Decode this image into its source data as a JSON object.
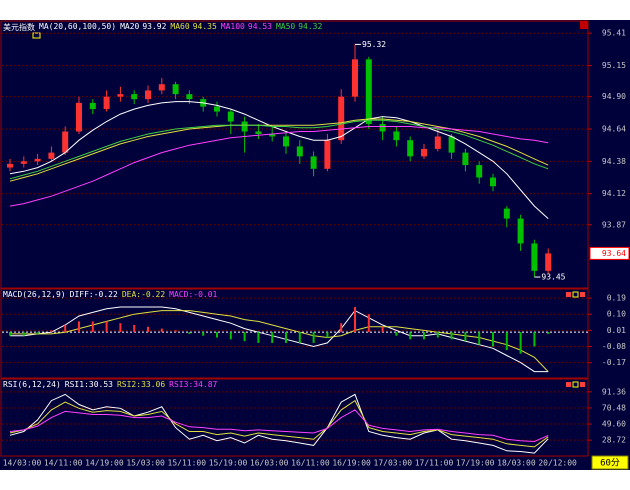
{
  "header": {
    "name": "美元指数"
  },
  "timeframe": "60分",
  "time_axis": [
    "14/03:00",
    "14/11:00",
    "14/19:00",
    "15/03:00",
    "15/11:00",
    "15/19:00",
    "16/03:00",
    "16/11:00",
    "16/19:00",
    "17/03:00",
    "17/11:00",
    "17/19:00",
    "18/03:00",
    "20/12:00"
  ],
  "chart_data": [
    {
      "type": "candlestick",
      "title": "MA(20,60,100,50)",
      "up_color": "#ff3232",
      "down_color": "#00c000",
      "ylim": [
        93.37,
        95.5
      ],
      "yticks": [
        95.41,
        95.15,
        {
          "value": 94.9,
          "label": "94.90"
        },
        94.64,
        94.38,
        94.12,
        93.87
      ],
      "grid": true,
      "last_price": 93.64,
      "ohlc": [
        [
          94.33,
          94.4,
          94.3,
          94.36
        ],
        [
          94.36,
          94.42,
          94.33,
          94.38
        ],
        [
          94.38,
          94.44,
          94.35,
          94.4
        ],
        [
          94.4,
          94.5,
          94.38,
          94.45
        ],
        [
          94.45,
          94.66,
          94.43,
          94.62
        ],
        [
          94.62,
          94.9,
          94.6,
          94.85
        ],
        [
          94.85,
          94.88,
          94.76,
          94.8
        ],
        [
          94.8,
          94.95,
          94.78,
          94.9
        ],
        [
          94.9,
          94.98,
          94.86,
          94.92
        ],
        [
          94.92,
          94.95,
          94.84,
          94.88
        ],
        [
          94.88,
          94.99,
          94.85,
          94.95
        ],
        [
          94.95,
          95.05,
          94.92,
          95.0
        ],
        [
          95.0,
          95.02,
          94.88,
          94.92
        ],
        [
          94.92,
          94.95,
          94.84,
          94.88
        ],
        [
          94.88,
          94.9,
          94.78,
          94.82
        ],
        [
          94.82,
          94.86,
          94.74,
          94.78
        ],
        [
          94.78,
          94.8,
          94.6,
          94.7
        ],
        [
          94.7,
          94.74,
          94.45,
          94.62
        ],
        [
          94.62,
          94.68,
          94.56,
          94.6
        ],
        [
          94.6,
          94.66,
          94.54,
          94.58
        ],
        [
          94.58,
          94.62,
          94.44,
          94.5
        ],
        [
          94.5,
          94.55,
          94.36,
          94.42
        ],
        [
          94.42,
          94.46,
          94.26,
          94.32
        ],
        [
          94.32,
          94.6,
          94.3,
          94.55
        ],
        [
          94.55,
          94.96,
          94.52,
          94.9
        ],
        [
          94.9,
          95.32,
          94.86,
          95.2
        ],
        [
          95.2,
          95.22,
          94.64,
          94.68
        ],
        [
          94.68,
          94.74,
          94.55,
          94.62
        ],
        [
          94.62,
          94.66,
          94.5,
          94.55
        ],
        [
          94.55,
          94.58,
          94.38,
          94.42
        ],
        [
          94.42,
          94.52,
          94.4,
          94.48
        ],
        [
          94.48,
          94.64,
          94.46,
          94.58
        ],
        [
          94.58,
          94.6,
          94.4,
          94.45
        ],
        [
          94.45,
          94.48,
          94.3,
          94.35
        ],
        [
          94.35,
          94.38,
          94.2,
          94.25
        ],
        [
          94.25,
          94.28,
          94.14,
          94.18
        ],
        [
          94.0,
          94.02,
          93.85,
          93.92
        ],
        [
          93.92,
          93.95,
          93.66,
          93.72
        ],
        [
          93.72,
          93.75,
          93.45,
          93.5
        ],
        [
          93.5,
          93.68,
          93.48,
          93.64
        ]
      ],
      "series": [
        {
          "name": "MA20",
          "color": "#ffffff",
          "values": [
            94.28,
            94.3,
            94.33,
            94.38,
            94.45,
            94.55,
            94.63,
            94.7,
            94.76,
            94.8,
            94.83,
            94.85,
            94.86,
            94.86,
            94.85,
            94.83,
            94.8,
            94.76,
            94.71,
            94.66,
            94.62,
            94.58,
            94.55,
            94.55,
            94.58,
            94.65,
            94.72,
            94.74,
            94.73,
            94.7,
            94.66,
            94.62,
            94.58,
            94.52,
            94.45,
            94.38,
            94.28,
            94.15,
            94.02,
            93.92
          ]
        },
        {
          "name": "MA60",
          "color": "#e0e040",
          "values": [
            94.22,
            94.25,
            94.28,
            94.32,
            94.36,
            94.4,
            94.44,
            94.48,
            94.52,
            94.55,
            94.58,
            94.6,
            94.62,
            94.64,
            94.65,
            94.66,
            94.67,
            94.67,
            94.67,
            94.67,
            94.67,
            94.67,
            94.67,
            94.68,
            94.69,
            94.71,
            94.72,
            94.72,
            94.71,
            94.7,
            94.68,
            94.66,
            94.64,
            94.61,
            94.58,
            94.54,
            94.5,
            94.45,
            94.4,
            94.35
          ]
        },
        {
          "name": "MA100",
          "color": "#ff40ff",
          "values": [
            94.02,
            94.04,
            94.07,
            94.1,
            94.14,
            94.18,
            94.22,
            94.27,
            94.32,
            94.37,
            94.41,
            94.45,
            94.48,
            94.51,
            94.53,
            94.55,
            94.57,
            94.58,
            94.59,
            94.6,
            94.61,
            94.62,
            94.62,
            94.63,
            94.64,
            94.65,
            94.66,
            94.66,
            94.66,
            94.66,
            94.65,
            94.65,
            94.64,
            94.63,
            94.62,
            94.6,
            94.58,
            94.56,
            94.55,
            94.53
          ]
        },
        {
          "name": "MA50",
          "color": "#40d040",
          "values": [
            94.24,
            94.27,
            94.3,
            94.34,
            94.38,
            94.42,
            94.46,
            94.5,
            94.54,
            94.57,
            94.6,
            94.62,
            94.64,
            94.65,
            94.66,
            94.67,
            94.67,
            94.67,
            94.67,
            94.66,
            94.66,
            94.65,
            94.65,
            94.66,
            94.68,
            94.7,
            94.71,
            94.71,
            94.7,
            94.68,
            94.66,
            94.64,
            94.62,
            94.59,
            94.55,
            94.51,
            94.46,
            94.41,
            94.36,
            94.32
          ]
        }
      ]
    },
    {
      "type": "macd",
      "title": "MACD(26,12,9)",
      "ylim": [
        -0.25,
        0.235
      ],
      "yticks": [
        0.19,
        {
          "value": 0.1,
          "label": "0.10"
        },
        0.01,
        -0.08,
        -0.17
      ],
      "grid": true,
      "series": [
        {
          "name": "DIFF:",
          "color": "#ffffff",
          "values": [
            -0.02,
            -0.02,
            -0.01,
            0.0,
            0.04,
            0.09,
            0.11,
            0.13,
            0.14,
            0.14,
            0.14,
            0.14,
            0.13,
            0.11,
            0.09,
            0.07,
            0.05,
            0.02,
            0.0,
            -0.02,
            -0.04,
            -0.06,
            -0.08,
            -0.06,
            0.02,
            0.12,
            0.08,
            0.04,
            0.01,
            -0.02,
            -0.02,
            -0.01,
            -0.03,
            -0.05,
            -0.07,
            -0.09,
            -0.13,
            -0.17,
            -0.22,
            -0.22
          ]
        },
        {
          "name": "DEA:",
          "color": "#e0e040",
          "values": [
            -0.01,
            -0.01,
            -0.01,
            -0.01,
            0.0,
            0.02,
            0.04,
            0.06,
            0.08,
            0.1,
            0.11,
            0.12,
            0.12,
            0.12,
            0.11,
            0.1,
            0.09,
            0.07,
            0.06,
            0.04,
            0.02,
            0.0,
            -0.02,
            -0.03,
            -0.02,
            0.01,
            0.03,
            0.03,
            0.03,
            0.02,
            0.01,
            0.0,
            -0.01,
            -0.02,
            -0.03,
            -0.05,
            -0.07,
            -0.1,
            -0.14,
            -0.22
          ]
        },
        {
          "name": "MACD:",
          "color": "#ff40ff",
          "up_color": "#ff3232",
          "down_color": "#00c000",
          "values": [
            -0.02,
            -0.02,
            -0.01,
            0.01,
            0.04,
            0.06,
            0.06,
            0.06,
            0.05,
            0.04,
            0.03,
            0.02,
            0.01,
            -0.01,
            -0.02,
            -0.03,
            -0.04,
            -0.05,
            -0.06,
            -0.06,
            -0.06,
            -0.06,
            -0.06,
            -0.03,
            0.05,
            0.14,
            0.1,
            0.03,
            -0.02,
            -0.04,
            -0.04,
            -0.03,
            -0.04,
            -0.05,
            -0.07,
            -0.08,
            -0.1,
            -0.12,
            -0.08,
            -0.01
          ]
        }
      ]
    },
    {
      "type": "line",
      "title": "RSI(6,12,24)",
      "ylim": [
        9.5,
        106.7
      ],
      "yticks": [
        91.36,
        70.48,
        {
          "value": 49.6,
          "label": "49.60"
        },
        28.72
      ],
      "grid": true,
      "series": [
        {
          "name": "RSI1:",
          "color": "#ffffff",
          "values": [
            35,
            40,
            55,
            80,
            88,
            75,
            68,
            72,
            70,
            60,
            65,
            72,
            45,
            30,
            35,
            28,
            32,
            25,
            35,
            30,
            28,
            25,
            22,
            45,
            78,
            88,
            40,
            35,
            32,
            30,
            38,
            42,
            30,
            28,
            25,
            22,
            15,
            14,
            12,
            30.53
          ]
        },
        {
          "name": "RSI2:",
          "color": "#e0e040",
          "values": [
            38,
            42,
            50,
            68,
            78,
            70,
            65,
            67,
            66,
            60,
            62,
            66,
            50,
            40,
            40,
            36,
            38,
            34,
            38,
            36,
            34,
            32,
            30,
            45,
            68,
            80,
            45,
            40,
            38,
            36,
            40,
            42,
            36,
            34,
            32,
            30,
            24,
            22,
            20,
            33.06
          ]
        },
        {
          "name": "RSI3:",
          "color": "#ff40ff",
          "values": [
            40,
            42,
            47,
            58,
            66,
            64,
            62,
            62,
            61,
            58,
            58,
            60,
            52,
            46,
            45,
            43,
            43,
            41,
            42,
            41,
            40,
            39,
            38,
            44,
            58,
            68,
            48,
            44,
            42,
            40,
            42,
            43,
            40,
            38,
            36,
            35,
            30,
            28,
            27,
            34.87
          ]
        }
      ]
    }
  ]
}
